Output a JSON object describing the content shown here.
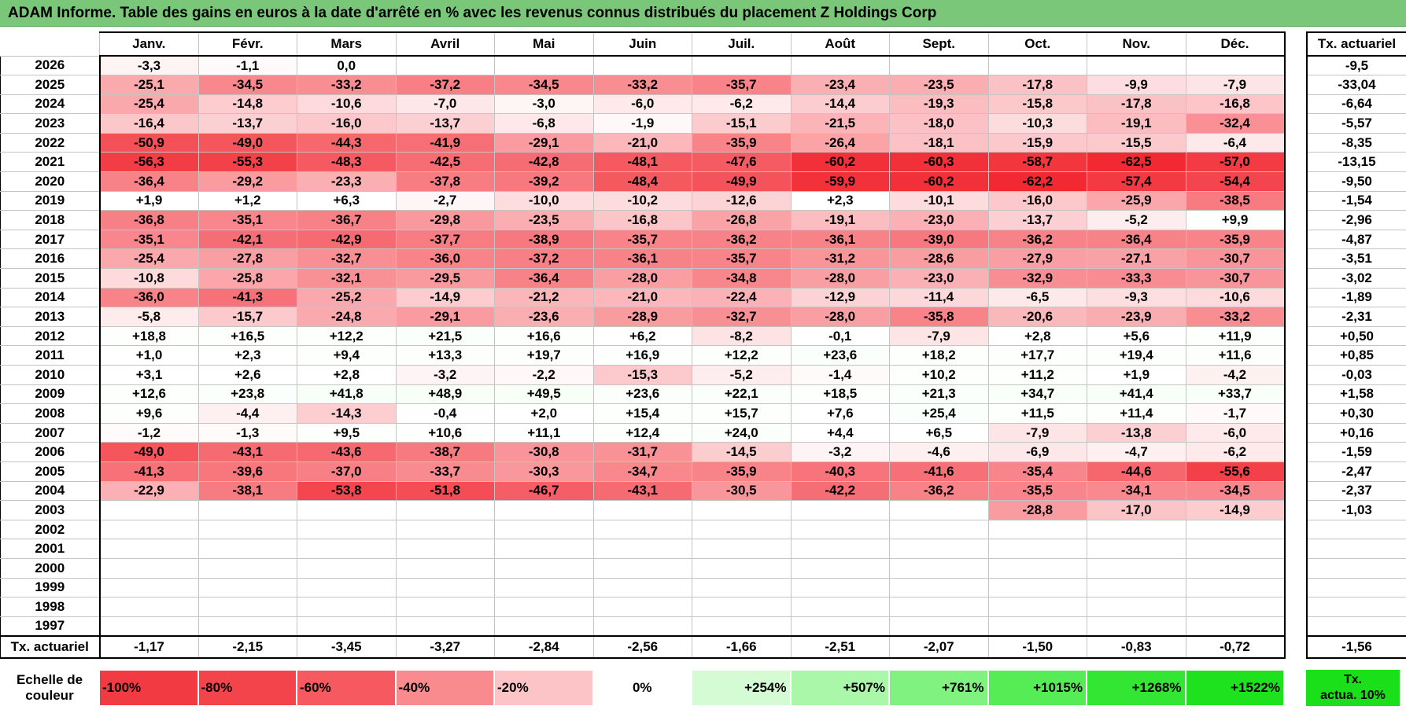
{
  "title": "ADAM Informe. Table des gains en euros à la date d'arrêté en % avec les revenus connus distribués du placement Z Holdings Corp",
  "months": [
    "Janv.",
    "Févr.",
    "Mars",
    "Avril",
    "Mai",
    "Juin",
    "Juil.",
    "Août",
    "Sept.",
    "Oct.",
    "Nov.",
    "Déc."
  ],
  "side_header": "Tx. actuariel",
  "rows": [
    {
      "year": "2026",
      "values": [
        "-3,3",
        "-1,1",
        "0,0",
        "",
        "",
        "",
        "",
        "",
        "",
        "",
        "",
        ""
      ],
      "tx": "-9,5"
    },
    {
      "year": "2025",
      "values": [
        "-25,1",
        "-34,5",
        "-33,2",
        "-37,2",
        "-34,5",
        "-33,2",
        "-35,7",
        "-23,4",
        "-23,5",
        "-17,8",
        "-9,9",
        "-7,9"
      ],
      "tx": "-33,04"
    },
    {
      "year": "2024",
      "values": [
        "-25,4",
        "-14,8",
        "-10,6",
        "-7,0",
        "-3,0",
        "-6,0",
        "-6,2",
        "-14,4",
        "-19,3",
        "-15,8",
        "-17,8",
        "-16,8"
      ],
      "tx": "-6,64"
    },
    {
      "year": "2023",
      "values": [
        "-16,4",
        "-13,7",
        "-16,0",
        "-13,7",
        "-6,8",
        "-1,9",
        "-15,1",
        "-21,5",
        "-18,0",
        "-10,3",
        "-19,1",
        "-32,4"
      ],
      "tx": "-5,57"
    },
    {
      "year": "2022",
      "values": [
        "-50,9",
        "-49,0",
        "-44,3",
        "-41,9",
        "-29,1",
        "-21,0",
        "-35,9",
        "-26,4",
        "-18,1",
        "-15,9",
        "-15,5",
        "-6,4"
      ],
      "tx": "-8,35"
    },
    {
      "year": "2021",
      "values": [
        "-56,3",
        "-55,3",
        "-48,3",
        "-42,5",
        "-42,8",
        "-48,1",
        "-47,6",
        "-60,2",
        "-60,3",
        "-58,7",
        "-62,5",
        "-57,0"
      ],
      "tx": "-13,15"
    },
    {
      "year": "2020",
      "values": [
        "-36,4",
        "-29,2",
        "-23,3",
        "-37,8",
        "-39,2",
        "-48,4",
        "-49,9",
        "-59,9",
        "-60,2",
        "-62,2",
        "-57,4",
        "-54,4"
      ],
      "tx": "-9,50"
    },
    {
      "year": "2019",
      "values": [
        "+1,9",
        "+1,2",
        "+6,3",
        "-2,7",
        "-10,0",
        "-10,2",
        "-12,6",
        "+2,3",
        "-10,1",
        "-16,0",
        "-25,9",
        "-38,5"
      ],
      "tx": "-1,54"
    },
    {
      "year": "2018",
      "values": [
        "-36,8",
        "-35,1",
        "-36,7",
        "-29,8",
        "-23,5",
        "-16,8",
        "-26,8",
        "-19,1",
        "-23,0",
        "-13,7",
        "-5,2",
        "+9,9"
      ],
      "tx": "-2,96"
    },
    {
      "year": "2017",
      "values": [
        "-35,1",
        "-42,1",
        "-42,9",
        "-37,7",
        "-38,9",
        "-35,7",
        "-36,2",
        "-36,1",
        "-39,0",
        "-36,2",
        "-36,4",
        "-35,9"
      ],
      "tx": "-4,87"
    },
    {
      "year": "2016",
      "values": [
        "-25,4",
        "-27,8",
        "-32,7",
        "-36,0",
        "-37,2",
        "-36,1",
        "-35,7",
        "-31,2",
        "-28,6",
        "-27,9",
        "-27,1",
        "-30,7"
      ],
      "tx": "-3,51"
    },
    {
      "year": "2015",
      "values": [
        "-10,8",
        "-25,8",
        "-32,1",
        "-29,5",
        "-36,4",
        "-28,0",
        "-34,8",
        "-28,0",
        "-23,0",
        "-32,9",
        "-33,3",
        "-30,7"
      ],
      "tx": "-3,02"
    },
    {
      "year": "2014",
      "values": [
        "-36,0",
        "-41,3",
        "-25,2",
        "-14,9",
        "-21,2",
        "-21,0",
        "-22,4",
        "-12,9",
        "-11,4",
        "-6,5",
        "-9,3",
        "-10,6"
      ],
      "tx": "-1,89"
    },
    {
      "year": "2013",
      "values": [
        "-5,8",
        "-15,7",
        "-24,8",
        "-29,1",
        "-23,6",
        "-28,9",
        "-32,7",
        "-28,0",
        "-35,8",
        "-20,6",
        "-23,9",
        "-33,2"
      ],
      "tx": "-2,31"
    },
    {
      "year": "2012",
      "values": [
        "+18,8",
        "+16,5",
        "+12,2",
        "+21,5",
        "+16,6",
        "+6,2",
        "-8,2",
        "-0,1",
        "-7,9",
        "+2,8",
        "+5,6",
        "+11,9"
      ],
      "tx": "+0,50"
    },
    {
      "year": "2011",
      "values": [
        "+1,0",
        "+2,3",
        "+9,4",
        "+13,3",
        "+19,7",
        "+16,9",
        "+12,2",
        "+23,6",
        "+18,2",
        "+17,7",
        "+19,4",
        "+11,6"
      ],
      "tx": "+0,85"
    },
    {
      "year": "2010",
      "values": [
        "+3,1",
        "+2,6",
        "+2,8",
        "-3,2",
        "-2,2",
        "-15,3",
        "-5,2",
        "-1,4",
        "+10,2",
        "+11,2",
        "+1,9",
        "-4,2"
      ],
      "tx": "-0,03"
    },
    {
      "year": "2009",
      "values": [
        "+12,6",
        "+23,8",
        "+41,8",
        "+48,9",
        "+49,5",
        "+23,6",
        "+22,1",
        "+18,5",
        "+21,3",
        "+34,7",
        "+41,4",
        "+33,7"
      ],
      "tx": "+1,58"
    },
    {
      "year": "2008",
      "values": [
        "+9,6",
        "-4,4",
        "-14,3",
        "-0,4",
        "+2,0",
        "+15,4",
        "+15,7",
        "+7,6",
        "+25,4",
        "+11,5",
        "+11,4",
        "-1,7"
      ],
      "tx": "+0,30"
    },
    {
      "year": "2007",
      "values": [
        "-1,2",
        "-1,3",
        "+9,5",
        "+10,6",
        "+11,1",
        "+12,4",
        "+24,0",
        "+4,4",
        "+6,5",
        "-7,9",
        "-13,8",
        "-6,0"
      ],
      "tx": "+0,16"
    },
    {
      "year": "2006",
      "values": [
        "-49,0",
        "-43,1",
        "-43,6",
        "-38,7",
        "-30,8",
        "-31,7",
        "-14,5",
        "-3,2",
        "-4,6",
        "-6,9",
        "-4,7",
        "-6,2"
      ],
      "tx": "-1,59"
    },
    {
      "year": "2005",
      "values": [
        "-41,3",
        "-39,6",
        "-37,0",
        "-33,7",
        "-30,3",
        "-34,7",
        "-35,9",
        "-40,3",
        "-41,6",
        "-35,4",
        "-44,6",
        "-55,6"
      ],
      "tx": "-2,47"
    },
    {
      "year": "2004",
      "values": [
        "-22,9",
        "-38,1",
        "-53,8",
        "-51,8",
        "-46,7",
        "-43,1",
        "-30,5",
        "-42,2",
        "-36,2",
        "-35,5",
        "-34,1",
        "-34,5"
      ],
      "tx": "-2,37"
    },
    {
      "year": "2003",
      "values": [
        "",
        "",
        "",
        "",
        "",
        "",
        "",
        "",
        "",
        "-28,8",
        "-17,0",
        "-14,9"
      ],
      "tx": "-1,03"
    },
    {
      "year": "2002",
      "values": [
        "",
        "",
        "",
        "",
        "",
        "",
        "",
        "",
        "",
        "",
        "",
        ""
      ],
      "tx": ""
    },
    {
      "year": "2001",
      "values": [
        "",
        "",
        "",
        "",
        "",
        "",
        "",
        "",
        "",
        "",
        "",
        ""
      ],
      "tx": ""
    },
    {
      "year": "2000",
      "values": [
        "",
        "",
        "",
        "",
        "",
        "",
        "",
        "",
        "",
        "",
        "",
        ""
      ],
      "tx": ""
    },
    {
      "year": "1999",
      "values": [
        "",
        "",
        "",
        "",
        "",
        "",
        "",
        "",
        "",
        "",
        "",
        ""
      ],
      "tx": ""
    },
    {
      "year": "1998",
      "values": [
        "",
        "",
        "",
        "",
        "",
        "",
        "",
        "",
        "",
        "",
        "",
        ""
      ],
      "tx": ""
    },
    {
      "year": "1997",
      "values": [
        "",
        "",
        "",
        "",
        "",
        "",
        "",
        "",
        "",
        "",
        "",
        ""
      ],
      "tx": ""
    }
  ],
  "total_row": {
    "label": "Tx. actuariel",
    "values": [
      "-1,17",
      "-2,15",
      "-3,45",
      "-3,27",
      "-2,84",
      "-2,56",
      "-1,66",
      "-2,51",
      "-2,07",
      "-1,50",
      "-0,83",
      "-0,72"
    ],
    "tx": "-1,56"
  },
  "scale": {
    "label_line1": "Echelle de",
    "label_line2": "couleur",
    "cells": [
      {
        "text": "-100%",
        "color": "#f23a42",
        "align": "left"
      },
      {
        "text": "-80%",
        "color": "#f4444b",
        "align": "left"
      },
      {
        "text": "-60%",
        "color": "#f65a60",
        "align": "left"
      },
      {
        "text": "-40%",
        "color": "#f98a8e",
        "align": "left"
      },
      {
        "text": "-20%",
        "color": "#fcc4c6",
        "align": "left"
      },
      {
        "text": "0%",
        "color": "#ffffff",
        "align": "center"
      },
      {
        "text": "+254%",
        "color": "#d4fbd4",
        "align": "right"
      },
      {
        "text": "+507%",
        "color": "#aaf7aa",
        "align": "right"
      },
      {
        "text": "+761%",
        "color": "#80f280",
        "align": "right"
      },
      {
        "text": "+1015%",
        "color": "#56ec56",
        "align": "right"
      },
      {
        "text": "+1268%",
        "color": "#33e633",
        "align": "right"
      },
      {
        "text": "+1522%",
        "color": "#1ee21e",
        "align": "right"
      }
    ],
    "tx_line1": "Tx.",
    "tx_line2": "actua. 10%",
    "tx_color": "#19e019"
  }
}
